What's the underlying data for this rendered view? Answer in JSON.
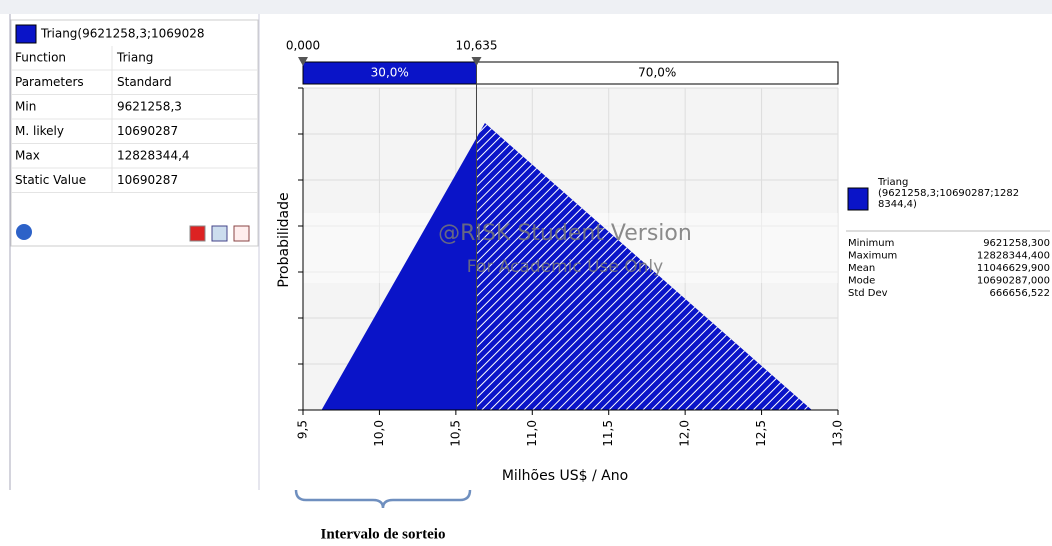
{
  "panel": {
    "header": "Triang(9621258,3;1069028",
    "rows": [
      [
        "Function",
        "Triang"
      ],
      [
        "Parameters",
        "Standard"
      ],
      [
        "Min",
        "9621258,3"
      ],
      [
        "M. likely",
        "10690287"
      ],
      [
        "Max",
        "12828344,4"
      ],
      [
        "Static Value",
        "10690287"
      ]
    ]
  },
  "chart_data": {
    "type": "area",
    "y_label": "Probabilidade",
    "x_label": "Milhões US$ / Ano",
    "watermark": [
      "@RISK Student Version",
      "For Academic Use Only"
    ],
    "x": [
      9.5,
      9.6213,
      10.6903,
      12.8283,
      13.0
    ],
    "series": [
      {
        "name": "Triang",
        "color": "#0a14c8",
        "values": [
          0,
          0,
          0.6236,
          0,
          0
        ]
      }
    ],
    "xlim": [
      9.5,
      13.0
    ],
    "xticks": [
      {
        "value": 9.5,
        "label": "9,5"
      },
      {
        "value": 10.0,
        "label": "10,0"
      },
      {
        "value": 10.5,
        "label": "10,5"
      },
      {
        "value": 11.0,
        "label": "11,0"
      },
      {
        "value": 11.5,
        "label": "11,5"
      },
      {
        "value": 12.0,
        "label": "12,0"
      },
      {
        "value": 12.5,
        "label": "12,5"
      },
      {
        "value": 13.0,
        "label": "13,0"
      }
    ],
    "ylim": [
      0,
      0.7
    ],
    "yticks": [
      0,
      0.1,
      0.2,
      0.3,
      0.4,
      0.5,
      0.6,
      0.7
    ],
    "grid": true,
    "left_delimiter_label": "0,000",
    "right_delimiter": {
      "value": 10.635,
      "label": "10,635"
    },
    "left_pct": {
      "value": 30,
      "label": "30,0%"
    },
    "right_pct": {
      "value": 70,
      "label": "70,0%"
    },
    "legend_text": [
      "Triang",
      "(9621258,3;10690287;1282",
      "8344,4)"
    ],
    "stats": [
      [
        "Minimum",
        "9621258,300"
      ],
      [
        "Maximum",
        "12828344,400"
      ],
      [
        "Mean",
        "11046629,900"
      ],
      [
        "Mode",
        "10690287,000"
      ],
      [
        "Std Dev",
        "666656,522"
      ]
    ]
  },
  "annotation": "Intervalo de sorteio"
}
